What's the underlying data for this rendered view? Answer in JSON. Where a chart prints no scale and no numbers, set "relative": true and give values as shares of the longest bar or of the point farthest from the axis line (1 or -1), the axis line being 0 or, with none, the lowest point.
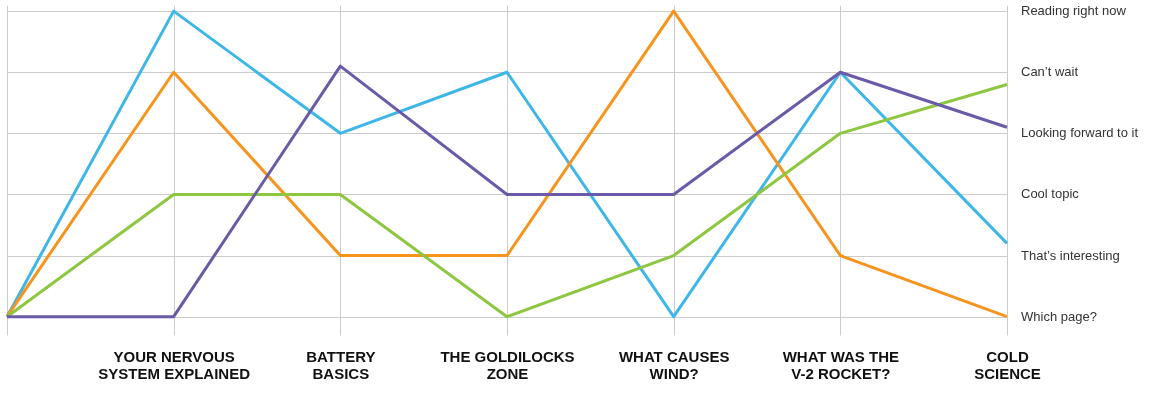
{
  "chart_data": {
    "type": "line",
    "relative": true,
    "categories": [
      null,
      "YOUR NERVOUS\nSYSTEM EXPLAINED",
      "BATTERY\nBASICS",
      "THE GOLDILOCKS\nZONE",
      "WHAT CAUSES\nWIND?",
      "WHAT WAS THE\nV-2 ROCKET?",
      "COLD\nSCIENCE"
    ],
    "series": [
      {
        "color": "#3db6e8",
        "values": [
          0,
          1,
          0.6,
          0.8,
          0,
          0.8,
          0.24
        ]
      },
      {
        "color": "#f7941d",
        "values": [
          0,
          0.8,
          0.2,
          0.2,
          1,
          0.2,
          0
        ]
      },
      {
        "color": "#8dc63f",
        "values": [
          0,
          0.4,
          0.4,
          0,
          0.2,
          0.6,
          0.76
        ]
      },
      {
        "color": "#6a5aa8",
        "values": [
          0,
          0,
          0.82,
          0.4,
          0.4,
          0.8,
          0.62
        ]
      }
    ],
    "annotations": [
      "Reading right now",
      "Can’t wait",
      "Looking forward to it",
      "Cool topic",
      "That’s interesting",
      "Which page?"
    ],
    "grid": true,
    "legend": false,
    "marker": "none",
    "line_style": "solid"
  }
}
